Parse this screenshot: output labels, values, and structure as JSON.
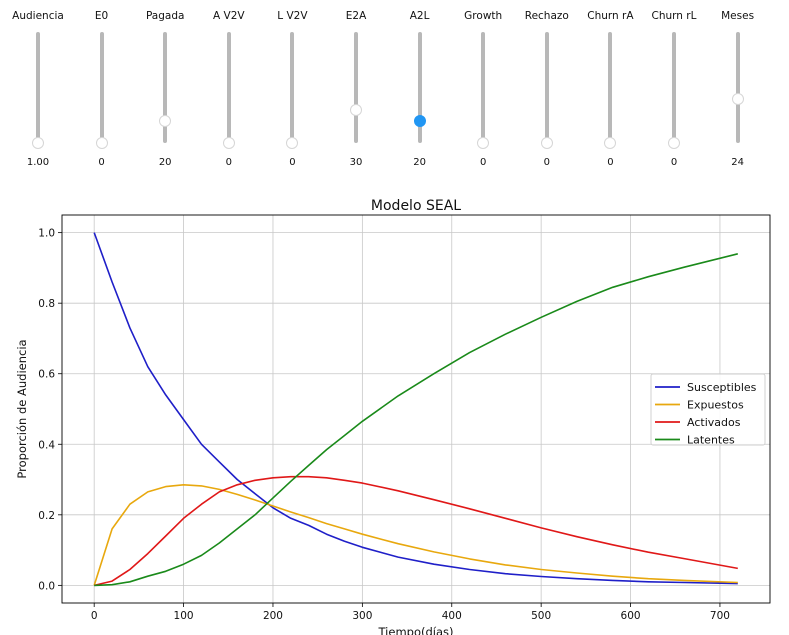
{
  "sliders": [
    {
      "label": "Audiencia",
      "value": "1.00",
      "level": 0.0
    },
    {
      "label": "E0",
      "value": "0",
      "level": 0.0
    },
    {
      "label": "Pagada",
      "value": "20",
      "level": 0.2
    },
    {
      "label": "A V2V",
      "value": "0",
      "level": 0.0
    },
    {
      "label": "L V2V",
      "value": "0",
      "level": 0.0
    },
    {
      "label": "E2A",
      "value": "30",
      "level": 0.3
    },
    {
      "label": "A2L",
      "value": "20",
      "level": 0.2,
      "active": true
    },
    {
      "label": "Growth",
      "value": "0",
      "level": 0.0
    },
    {
      "label": "Rechazo",
      "value": "0",
      "level": 0.0
    },
    {
      "label": "Churn rA",
      "value": "0",
      "level": 0.0
    },
    {
      "label": "Churn rL",
      "value": "0",
      "level": 0.0
    },
    {
      "label": "Meses",
      "value": "24",
      "level": 0.4
    }
  ],
  "colors": {
    "accent": "#2196f3"
  },
  "chart_data": {
    "type": "line",
    "title": "Modelo SEAL",
    "xlabel": "Tiempo(días)",
    "ylabel": "Proporción de Audiencia",
    "xlim": [
      -36,
      756
    ],
    "ylim": [
      -0.05,
      1.05
    ],
    "xticks": [
      0,
      100,
      200,
      300,
      400,
      500,
      600,
      700
    ],
    "yticks": [
      0.0,
      0.2,
      0.4,
      0.6,
      0.8,
      1.0
    ],
    "grid": true,
    "legend_position": "center-right",
    "x": [
      0,
      20,
      40,
      60,
      80,
      100,
      120,
      140,
      160,
      180,
      200,
      220,
      240,
      260,
      280,
      300,
      340,
      380,
      420,
      460,
      500,
      540,
      580,
      620,
      660,
      720
    ],
    "series": [
      {
        "name": "Susceptibles",
        "color": "#1f1fc8",
        "values": [
          1.0,
          0.86,
          0.73,
          0.62,
          0.54,
          0.47,
          0.4,
          0.35,
          0.3,
          0.26,
          0.22,
          0.19,
          0.17,
          0.145,
          0.125,
          0.108,
          0.08,
          0.06,
          0.045,
          0.033,
          0.025,
          0.019,
          0.014,
          0.01,
          0.008,
          0.005
        ]
      },
      {
        "name": "Expuestos",
        "color": "#e8a80e",
        "values": [
          0.0,
          0.16,
          0.23,
          0.265,
          0.28,
          0.285,
          0.282,
          0.272,
          0.258,
          0.242,
          0.225,
          0.208,
          0.192,
          0.175,
          0.16,
          0.145,
          0.118,
          0.095,
          0.075,
          0.058,
          0.045,
          0.035,
          0.026,
          0.019,
          0.014,
          0.008
        ]
      },
      {
        "name": "Activados",
        "color": "#e01818",
        "values": [
          0.0,
          0.012,
          0.045,
          0.09,
          0.14,
          0.19,
          0.23,
          0.265,
          0.285,
          0.298,
          0.305,
          0.308,
          0.308,
          0.305,
          0.298,
          0.29,
          0.268,
          0.243,
          0.217,
          0.19,
          0.163,
          0.138,
          0.115,
          0.094,
          0.076,
          0.048
        ]
      },
      {
        "name": "Latentes",
        "color": "#1a8a1a",
        "values": [
          0.0,
          0.002,
          0.01,
          0.026,
          0.04,
          0.06,
          0.085,
          0.12,
          0.16,
          0.2,
          0.248,
          0.295,
          0.34,
          0.385,
          0.425,
          0.465,
          0.537,
          0.6,
          0.66,
          0.712,
          0.76,
          0.805,
          0.845,
          0.875,
          0.902,
          0.94
        ]
      }
    ]
  }
}
